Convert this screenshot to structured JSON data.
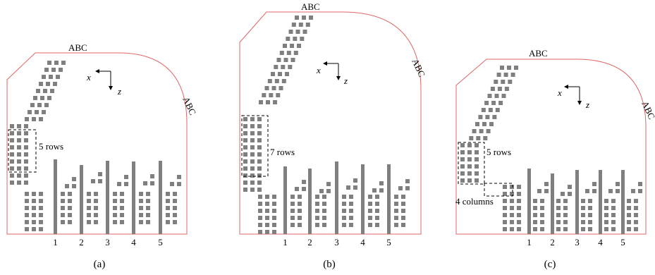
{
  "panels": [
    {
      "id": "a",
      "caption": "(a)",
      "abc_top": "ABC",
      "abc_side": "ABC",
      "axis_x": "x",
      "axis_z": "z",
      "rows_label": "5 rows",
      "columns_label": "",
      "bar_labels": [
        "1",
        "2",
        "3",
        "4",
        "5"
      ]
    },
    {
      "id": "b",
      "caption": "(b)",
      "abc_top": "ABC",
      "abc_side": "ABC",
      "axis_x": "x",
      "axis_z": "z",
      "rows_label": "7 rows",
      "columns_label": "",
      "bar_labels": [
        "1",
        "2",
        "3",
        "4",
        "5"
      ]
    },
    {
      "id": "c",
      "caption": "(c)",
      "abc_top": "ABC",
      "abc_side": "ABC",
      "axis_x": "x",
      "axis_z": "z",
      "rows_label": "5 rows",
      "columns_label": "4 columns",
      "bar_labels": [
        "1",
        "2",
        "3",
        "4",
        "5"
      ]
    }
  ]
}
